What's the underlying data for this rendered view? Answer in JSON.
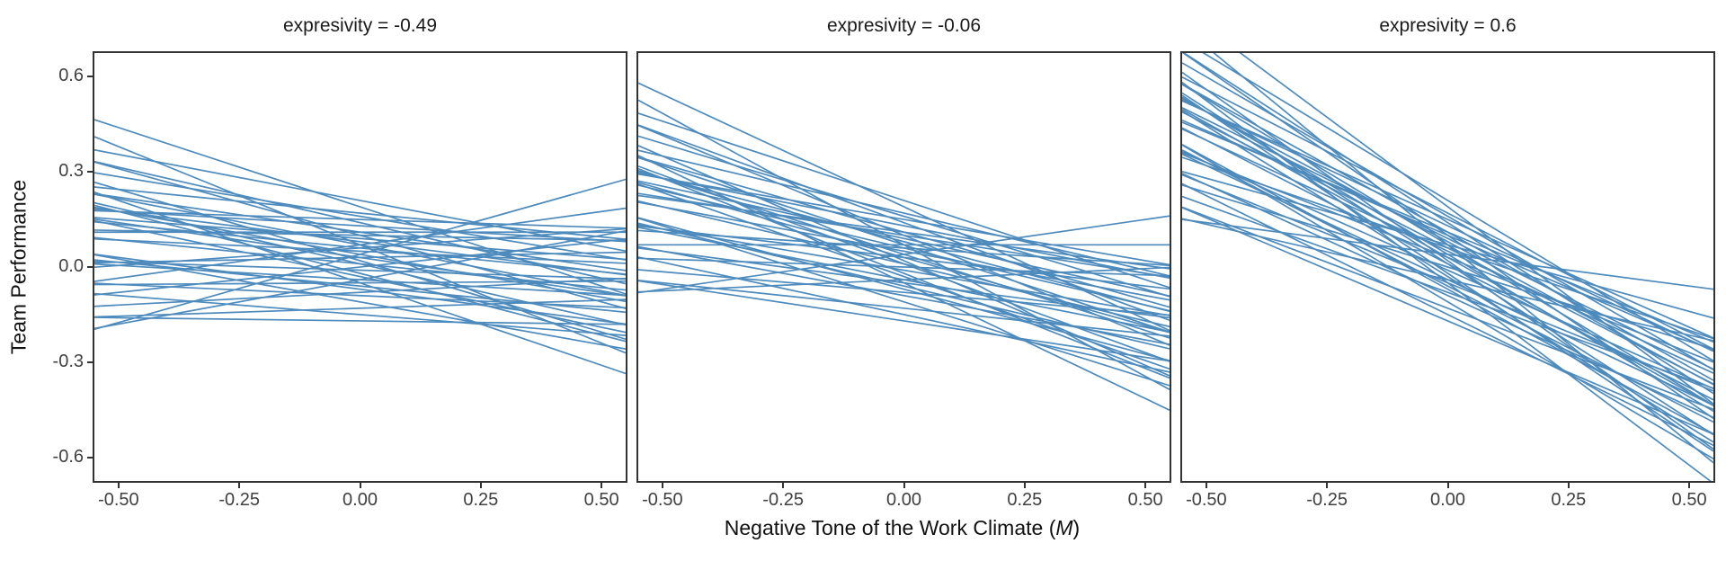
{
  "figure": {
    "background": "#ffffff",
    "text_color": "#1a1a1a",
    "tick_label_color": "#404040",
    "panel_border_color": "#333333"
  },
  "chart_data": {
    "type": "line",
    "description": "Faceted spaghetti plot of per-team fitted regression lines; facets are levels of the moderator 'expresivity'. Each line: y = fixed_intercept + u0 + (base_slope + u1) * x, clipped to panel.",
    "facet_variable": "expresivity",
    "facets": [
      {
        "label": "expresivity = -0.49",
        "value": -0.49,
        "base_slope": -0.17
      },
      {
        "label": "expresivity = -0.06",
        "value": -0.06,
        "base_slope": -0.38
      },
      {
        "label": "expresivity = 0.6",
        "value": 0.6,
        "base_slope": -0.8
      }
    ],
    "fixed_intercept": 0.01,
    "teams": [
      {
        "u0": 0.03,
        "u1": 0.6
      },
      {
        "u0": 0.1,
        "u1": 0.17
      },
      {
        "u0": 0.09,
        "u1": 0.14
      },
      {
        "u0": 0.18,
        "u1": -0.33
      },
      {
        "u0": 0.06,
        "u1": -0.45
      },
      {
        "u0": -0.05,
        "u1": 0.08
      },
      {
        "u0": 0.02,
        "u1": -0.05
      },
      {
        "u0": -0.02,
        "u1": 0.12
      },
      {
        "u0": 0.06,
        "u1": -0.12
      },
      {
        "u0": -0.08,
        "u1": -0.03
      },
      {
        "u0": 0.13,
        "u1": -0.18
      },
      {
        "u0": -0.14,
        "u1": 0.22
      },
      {
        "u0": 0.0,
        "u1": 0.02
      },
      {
        "u0": 0.05,
        "u1": 0.28
      },
      {
        "u0": -0.03,
        "u1": -0.22
      },
      {
        "u0": 0.08,
        "u1": 0.05
      },
      {
        "u0": -0.1,
        "u1": 0.1
      },
      {
        "u0": 0.15,
        "u1": -0.08
      },
      {
        "u0": -0.06,
        "u1": 0.18
      },
      {
        "u0": 0.01,
        "u1": -0.28
      },
      {
        "u0": 0.04,
        "u1": 0.1
      },
      {
        "u0": -0.12,
        "u1": -0.1
      },
      {
        "u0": 0.07,
        "u1": -0.02
      },
      {
        "u0": 0.12,
        "u1": 0.08
      },
      {
        "u0": -0.01,
        "u1": 0.33
      },
      {
        "u0": 0.09,
        "u1": -0.25
      },
      {
        "u0": -0.07,
        "u1": 0.02
      },
      {
        "u0": 0.02,
        "u1": 0.2
      },
      {
        "u0": 0.16,
        "u1": 0.02
      },
      {
        "u0": -0.04,
        "u1": -0.15
      },
      {
        "u0": 0.06,
        "u1": 0.38
      },
      {
        "u0": -0.16,
        "u1": 0.05
      },
      {
        "u0": 0.03,
        "u1": -0.1
      },
      {
        "u0": 0.1,
        "u1": -0.05
      },
      {
        "u0": -0.06,
        "u1": -0.35
      },
      {
        "u0": 0.14,
        "u1": 0.12
      },
      {
        "u0": -0.09,
        "u1": 0.25
      },
      {
        "u0": 0.0,
        "u1": -0.18
      },
      {
        "u0": 0.2,
        "u1": -0.12
      },
      {
        "u0": -0.18,
        "u1": 0.15
      },
      {
        "u0": 0.05,
        "u1": 0.02
      },
      {
        "u0": -0.05,
        "u1": 0.45
      }
    ],
    "xlim": [
      -0.55,
      0.55
    ],
    "ylim": [
      -0.675,
      0.675
    ],
    "xticks": {
      "values": [
        -0.5,
        -0.25,
        0.0,
        0.25,
        0.5
      ],
      "labels": [
        "-0.50",
        "-0.25",
        "0.00",
        "0.25",
        "0.50"
      ]
    },
    "yticks": {
      "values": [
        0.6,
        0.3,
        0.0,
        -0.3,
        -0.6
      ],
      "labels": [
        "0.6",
        "0.3",
        "0.0",
        "-0.3",
        "-0.6"
      ]
    },
    "xlabel": "Negative Tone of the Work Climate (M)",
    "xlabel_parts": {
      "pre": "Negative Tone of the Work Climate (",
      "italic": "M",
      "post": ")"
    },
    "ylabel": "Team Performance",
    "line_color": "#4e8bbd",
    "line_width": 1.7,
    "grid": false,
    "legend": "none"
  }
}
